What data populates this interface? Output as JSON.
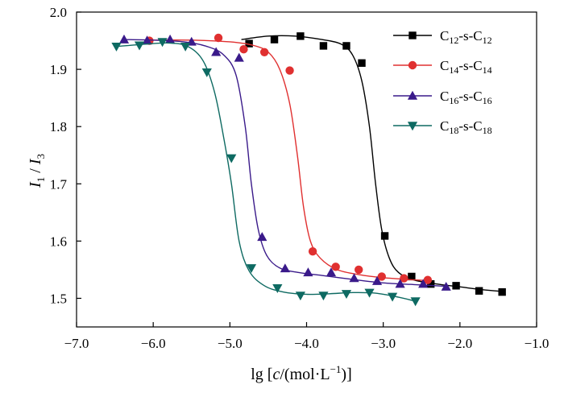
{
  "chart_data": {
    "type": "line",
    "title": "",
    "xlabel": "lg [c/(mol·L⁻¹)]",
    "ylabel": "I1 / I3",
    "xlim": [
      -7.0,
      -1.0
    ],
    "ylim": [
      1.45,
      2.0
    ],
    "xticks": [
      -7.0,
      -6.0,
      -5.0,
      -4.0,
      -3.0,
      -2.0,
      -1.0
    ],
    "xtick_labels": [
      "−7.0",
      "−6.0",
      "−5.0",
      "−4.0",
      "−3.0",
      "−2.0",
      "−1.0"
    ],
    "yticks": [
      1.5,
      1.6,
      1.7,
      1.8,
      1.9,
      2.0
    ],
    "ytick_labels": [
      "1.5",
      "1.6",
      "1.7",
      "1.8",
      "1.9",
      "2.0"
    ],
    "grid": false,
    "legend_position": "top-right",
    "series": [
      {
        "name": "C12-s-C12",
        "legend": {
          "a": "C",
          "b": "12",
          "c": "-s-C",
          "d": "12"
        },
        "color": "#000000",
        "marker": "square",
        "points": [
          [
            -4.75,
            1.945
          ],
          [
            -4.42,
            1.952
          ],
          [
            -4.08,
            1.958
          ],
          [
            -3.78,
            1.941
          ],
          [
            -3.48,
            1.941
          ],
          [
            -3.28,
            1.911
          ],
          [
            -2.98,
            1.609
          ],
          [
            -2.63,
            1.538
          ],
          [
            -2.38,
            1.525
          ],
          [
            -2.05,
            1.522
          ],
          [
            -1.75,
            1.513
          ],
          [
            -1.45,
            1.511
          ]
        ],
        "curve": [
          [
            -4.85,
            1.952
          ],
          [
            -4.5,
            1.958
          ],
          [
            -4.15,
            1.958
          ],
          [
            -3.8,
            1.952
          ],
          [
            -3.55,
            1.944
          ],
          [
            -3.4,
            1.925
          ],
          [
            -3.28,
            1.88
          ],
          [
            -3.18,
            1.8
          ],
          [
            -3.1,
            1.7
          ],
          [
            -3.02,
            1.62
          ],
          [
            -2.92,
            1.57
          ],
          [
            -2.8,
            1.545
          ],
          [
            -2.6,
            1.532
          ],
          [
            -2.3,
            1.525
          ],
          [
            -2.0,
            1.52
          ],
          [
            -1.7,
            1.515
          ],
          [
            -1.45,
            1.512
          ]
        ]
      },
      {
        "name": "C14-s-C14",
        "legend": {
          "a": "C",
          "b": "14",
          "c": "-s-C",
          "d": "14"
        },
        "color": "#e03030",
        "marker": "circle",
        "points": [
          [
            -6.05,
            1.95
          ],
          [
            -5.15,
            1.955
          ],
          [
            -4.82,
            1.935
          ],
          [
            -4.55,
            1.93
          ],
          [
            -4.22,
            1.898
          ],
          [
            -3.92,
            1.582
          ],
          [
            -3.62,
            1.555
          ],
          [
            -3.32,
            1.55
          ],
          [
            -3.02,
            1.538
          ],
          [
            -2.73,
            1.535
          ],
          [
            -2.42,
            1.532
          ]
        ],
        "curve": [
          [
            -6.05,
            1.951
          ],
          [
            -5.5,
            1.951
          ],
          [
            -5.0,
            1.948
          ],
          [
            -4.7,
            1.942
          ],
          [
            -4.5,
            1.93
          ],
          [
            -4.35,
            1.9
          ],
          [
            -4.22,
            1.84
          ],
          [
            -4.12,
            1.75
          ],
          [
            -4.04,
            1.66
          ],
          [
            -3.95,
            1.6
          ],
          [
            -3.82,
            1.57
          ],
          [
            -3.6,
            1.55
          ],
          [
            -3.3,
            1.541
          ],
          [
            -3.0,
            1.536
          ],
          [
            -2.7,
            1.533
          ],
          [
            -2.42,
            1.531
          ]
        ]
      },
      {
        "name": "C16-s-C16",
        "legend": {
          "a": "C",
          "b": "16",
          "c": "-s-C",
          "d": "16"
        },
        "color": "#3a1a8a",
        "marker": "triangle-up",
        "points": [
          [
            -6.38,
            1.952
          ],
          [
            -6.08,
            1.95
          ],
          [
            -5.78,
            1.952
          ],
          [
            -5.5,
            1.948
          ],
          [
            -5.18,
            1.93
          ],
          [
            -4.88,
            1.92
          ],
          [
            -4.58,
            1.607
          ],
          [
            -4.28,
            1.552
          ],
          [
            -3.98,
            1.545
          ],
          [
            -3.68,
            1.545
          ],
          [
            -3.38,
            1.535
          ],
          [
            -3.08,
            1.53
          ],
          [
            -2.78,
            1.525
          ],
          [
            -2.48,
            1.525
          ],
          [
            -2.18,
            1.52
          ]
        ],
        "curve": [
          [
            -6.38,
            1.952
          ],
          [
            -6.0,
            1.951
          ],
          [
            -5.6,
            1.948
          ],
          [
            -5.3,
            1.94
          ],
          [
            -5.08,
            1.925
          ],
          [
            -4.92,
            1.89
          ],
          [
            -4.8,
            1.8
          ],
          [
            -4.72,
            1.7
          ],
          [
            -4.63,
            1.62
          ],
          [
            -4.52,
            1.575
          ],
          [
            -4.35,
            1.553
          ],
          [
            -4.1,
            1.545
          ],
          [
            -3.8,
            1.54
          ],
          [
            -3.4,
            1.533
          ],
          [
            -3.0,
            1.527
          ],
          [
            -2.6,
            1.524
          ],
          [
            -2.18,
            1.521
          ]
        ]
      },
      {
        "name": "C18-s-C18",
        "legend": {
          "a": "C",
          "b": "18",
          "c": "-s-C",
          "d": "18"
        },
        "color": "#0e6a62",
        "marker": "triangle-down",
        "points": [
          [
            -6.48,
            1.94
          ],
          [
            -6.18,
            1.942
          ],
          [
            -5.88,
            1.948
          ],
          [
            -5.58,
            1.94
          ],
          [
            -5.3,
            1.895
          ],
          [
            -4.98,
            1.745
          ],
          [
            -4.72,
            1.553
          ],
          [
            -4.38,
            1.518
          ],
          [
            -4.08,
            1.505
          ],
          [
            -3.78,
            1.505
          ],
          [
            -3.48,
            1.508
          ],
          [
            -3.18,
            1.51
          ],
          [
            -2.88,
            1.503
          ],
          [
            -2.58,
            1.495
          ]
        ],
        "curve": [
          [
            -6.48,
            1.94
          ],
          [
            -6.1,
            1.944
          ],
          [
            -5.8,
            1.946
          ],
          [
            -5.55,
            1.94
          ],
          [
            -5.35,
            1.915
          ],
          [
            -5.2,
            1.86
          ],
          [
            -5.08,
            1.78
          ],
          [
            -4.98,
            1.7
          ],
          [
            -4.88,
            1.6
          ],
          [
            -4.75,
            1.548
          ],
          [
            -4.55,
            1.522
          ],
          [
            -4.3,
            1.511
          ],
          [
            -4.0,
            1.507
          ],
          [
            -3.7,
            1.508
          ],
          [
            -3.4,
            1.51
          ],
          [
            -3.1,
            1.509
          ],
          [
            -2.8,
            1.502
          ],
          [
            -2.58,
            1.495
          ]
        ]
      }
    ]
  }
}
